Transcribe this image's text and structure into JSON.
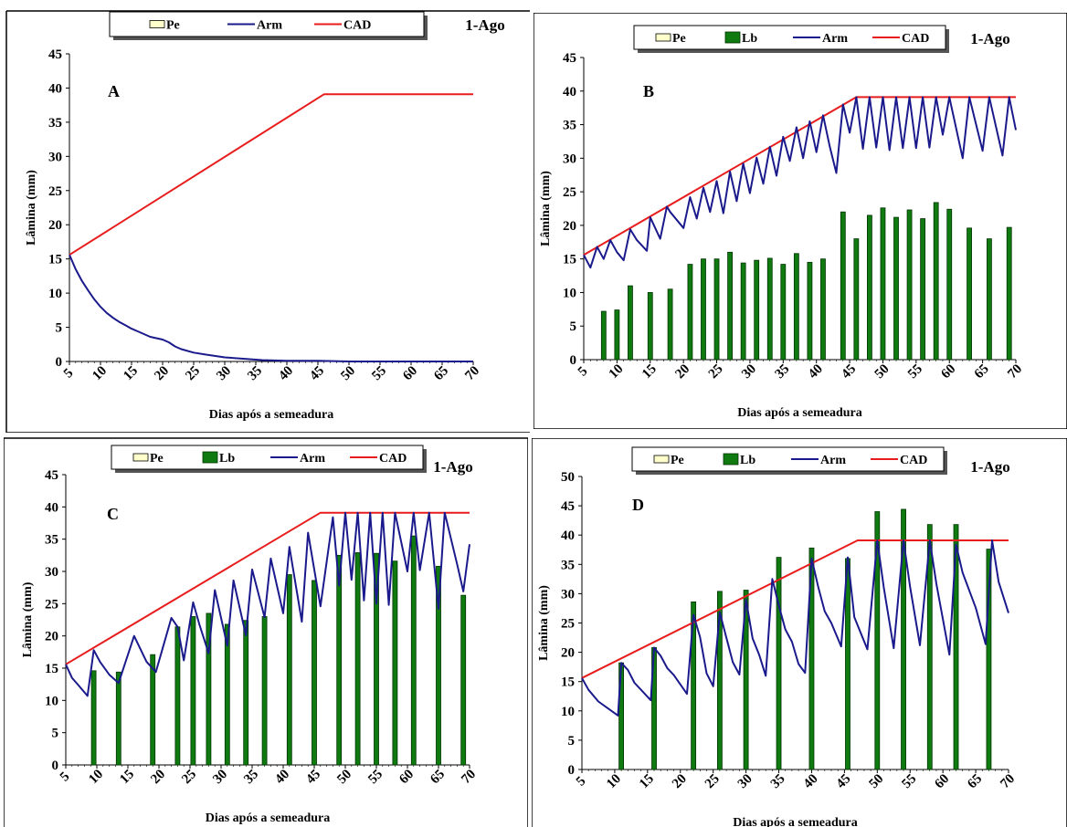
{
  "colors": {
    "arm": "#1a1a8c",
    "cad": "#e81c1c",
    "lb_fill": "#0f7a0f",
    "lb_stroke": "#003300",
    "pe_fill": "#ffffcc"
  },
  "chart_data": [
    {
      "type": "line",
      "panel_label": "A",
      "date_label": "1-Ago",
      "legend": [
        "Pe",
        "Arm",
        "CAD"
      ],
      "xlabel": "Dias após a semeadura",
      "ylabel": "Lâmina (mm)",
      "xlim": [
        5,
        70
      ],
      "ylim": [
        0,
        45
      ],
      "xticks": [
        5,
        10,
        15,
        20,
        25,
        30,
        35,
        40,
        45,
        50,
        55,
        60,
        65,
        70
      ],
      "yticks": [
        0,
        5,
        10,
        15,
        20,
        25,
        30,
        35,
        40,
        45
      ],
      "series": [
        {
          "name": "CAD",
          "x": [
            5,
            46,
            70
          ],
          "y": [
            15.6,
            39.1,
            39.1
          ]
        },
        {
          "name": "Arm",
          "x": [
            5,
            6,
            7,
            8,
            9,
            10,
            11,
            12,
            13,
            14,
            15,
            16,
            17,
            18,
            19,
            20,
            21,
            22,
            23,
            25,
            27,
            30,
            33,
            36,
            40,
            45,
            50,
            60,
            70
          ],
          "y": [
            15.6,
            13.5,
            11.8,
            10.4,
            9.1,
            8.0,
            7.1,
            6.4,
            5.8,
            5.3,
            4.8,
            4.4,
            4.0,
            3.6,
            3.4,
            3.2,
            2.8,
            2.2,
            1.8,
            1.3,
            1.0,
            0.6,
            0.4,
            0.2,
            0.1,
            0.1,
            0.0,
            0.0,
            0.0
          ]
        }
      ]
    },
    {
      "type": "bar",
      "panel_label": "B",
      "date_label": "1-Ago",
      "legend": [
        "Pe",
        "Lb",
        "Arm",
        "CAD"
      ],
      "xlabel": "Dias após a semeadura",
      "ylabel": "Lâmina (mm)",
      "xlim": [
        5,
        70
      ],
      "ylim": [
        0,
        45
      ],
      "xticks": [
        5,
        10,
        15,
        20,
        25,
        30,
        35,
        40,
        45,
        50,
        55,
        60,
        65,
        70
      ],
      "yticks": [
        0,
        5,
        10,
        15,
        20,
        25,
        30,
        35,
        40,
        45
      ],
      "bars": {
        "name": "Lb",
        "x": [
          8,
          10,
          12,
          15,
          18,
          21,
          23,
          25,
          27,
          29,
          31,
          33,
          35,
          37,
          39,
          41,
          44,
          46,
          48,
          50,
          52,
          54,
          56,
          58,
          60,
          63,
          66,
          69
        ],
        "values": [
          7.2,
          7.4,
          11.0,
          10.0,
          10.5,
          14.2,
          15.0,
          15.0,
          16.0,
          14.4,
          14.8,
          15.1,
          14.2,
          15.8,
          14.5,
          15.0,
          22.0,
          18.0,
          21.5,
          22.6,
          21.2,
          22.3,
          21.0,
          23.4,
          22.4,
          19.6,
          18.0,
          19.7
        ]
      },
      "series": [
        {
          "name": "CAD",
          "x": [
            5,
            46,
            70
          ],
          "y": [
            15.6,
            39.1,
            39.1
          ]
        },
        {
          "name": "Arm",
          "x": [
            5,
            6,
            7,
            8,
            9,
            10,
            11,
            12,
            13,
            14.5,
            15,
            16.5,
            17.5,
            18,
            20,
            21,
            22,
            23,
            24,
            25,
            26,
            27,
            28,
            29,
            30,
            31,
            32,
            33,
            34,
            35,
            36,
            37,
            38,
            39,
            40,
            41,
            42,
            43,
            44,
            45,
            46,
            47,
            48,
            49,
            50,
            51,
            52,
            53,
            54,
            55,
            56,
            57,
            58,
            59,
            60,
            62,
            63,
            65,
            66,
            68,
            69,
            70
          ],
          "y": [
            15.6,
            13.7,
            16.8,
            15.0,
            17.8,
            16.0,
            14.8,
            19.4,
            17.8,
            16.2,
            21.2,
            18.0,
            22.8,
            22.0,
            19.6,
            24.2,
            21.0,
            25.6,
            22.0,
            26.6,
            21.8,
            28.0,
            23.6,
            29.2,
            24.8,
            30.1,
            26.2,
            31.7,
            27.4,
            33.2,
            29.6,
            34.6,
            30.0,
            35.5,
            30.9,
            36.4,
            31.8,
            27.8,
            38.0,
            33.8,
            39.1,
            31.4,
            39.1,
            31.6,
            39.1,
            31.2,
            39.1,
            31.5,
            39.1,
            31.5,
            39.1,
            31.6,
            39.1,
            33.5,
            39.1,
            30.0,
            39.1,
            31.1,
            39.1,
            30.4,
            39.1,
            34.2
          ]
        }
      ]
    },
    {
      "type": "bar",
      "panel_label": "C",
      "date_label": "1-Ago",
      "legend": [
        "Pe",
        "Lb",
        "Arm",
        "CAD"
      ],
      "xlabel": "Dias após a semeadura",
      "ylabel": "Lâmina (mm)",
      "xlim": [
        5,
        70
      ],
      "ylim": [
        0,
        45
      ],
      "xticks": [
        5,
        10,
        15,
        20,
        25,
        30,
        35,
        40,
        45,
        50,
        55,
        60,
        65,
        70
      ],
      "yticks": [
        0,
        5,
        10,
        15,
        20,
        25,
        30,
        35,
        40,
        45
      ],
      "bars": {
        "name": "Lb",
        "x": [
          9.5,
          13.5,
          19,
          23,
          25.5,
          28,
          31,
          34,
          37,
          41,
          45,
          49,
          52,
          55,
          58,
          61,
          65,
          69
        ],
        "values": [
          14.6,
          14.4,
          17.1,
          21.4,
          23.0,
          23.5,
          21.8,
          22.4,
          23.0,
          29.5,
          28.6,
          32.5,
          32.9,
          32.8,
          31.6,
          35.5,
          30.8,
          26.3
        ]
      },
      "series": [
        {
          "name": "CAD",
          "x": [
            5,
            46,
            70
          ],
          "y": [
            15.6,
            39.1,
            39.1
          ]
        },
        {
          "name": "Arm",
          "x": [
            5,
            6,
            7,
            8.5,
            9.5,
            10.5,
            12,
            13.5,
            16,
            18,
            19.5,
            22,
            23,
            24,
            25.5,
            26.5,
            28,
            29,
            31,
            32,
            34,
            35,
            37,
            38,
            40,
            41,
            43,
            44,
            46,
            48,
            49,
            50,
            51,
            52,
            53,
            54,
            55,
            56,
            57,
            58,
            60,
            61,
            62,
            63.5,
            65,
            66,
            68,
            69,
            70
          ],
          "y": [
            15.6,
            13.5,
            12.4,
            10.7,
            17.8,
            16.0,
            14.0,
            12.7,
            20.0,
            16.0,
            14.4,
            22.8,
            21.4,
            16.2,
            25.2,
            21.8,
            17.3,
            27.1,
            18.5,
            28.6,
            20.1,
            30.3,
            22.9,
            32.0,
            23.5,
            33.8,
            22.2,
            36.0,
            24.6,
            38.4,
            27.8,
            39.1,
            28.7,
            39.1,
            25.5,
            39.1,
            25.0,
            39.1,
            24.8,
            39.1,
            30.0,
            39.1,
            30.2,
            39.1,
            24.2,
            39.1,
            31.1,
            26.9,
            34.2
          ]
        }
      ]
    },
    {
      "type": "bar",
      "panel_label": "D",
      "date_label": "1-Ago",
      "legend": [
        "Pe",
        "Lb",
        "Arm",
        "CAD"
      ],
      "xlabel": "Dias após a semeadura",
      "ylabel": "Lâmina (mm)",
      "xlim": [
        5,
        70
      ],
      "ylim": [
        0,
        50
      ],
      "xticks": [
        5,
        10,
        15,
        20,
        25,
        30,
        35,
        40,
        45,
        50,
        55,
        60,
        65,
        70
      ],
      "yticks": [
        0,
        5,
        10,
        15,
        20,
        25,
        30,
        35,
        40,
        45,
        50
      ],
      "bars": {
        "name": "Lb",
        "x": [
          11,
          16,
          22,
          26,
          30,
          35,
          40,
          45.5,
          50,
          54,
          58,
          62,
          67
        ],
        "values": [
          18.2,
          20.8,
          28.6,
          30.4,
          30.6,
          36.2,
          37.8,
          36.0,
          44.0,
          44.4,
          41.8,
          41.8,
          37.6
        ]
      },
      "series": [
        {
          "name": "CAD",
          "x": [
            5,
            47,
            70
          ],
          "y": [
            15.6,
            39.1,
            39.1
          ]
        },
        {
          "name": "Arm",
          "x": [
            5,
            6,
            7.5,
            9,
            10.5,
            11,
            12,
            13,
            14,
            15.5,
            16,
            17,
            18,
            19,
            21,
            22,
            23,
            24,
            25,
            26,
            27,
            28,
            29,
            30,
            31,
            32,
            33,
            34,
            35,
            36,
            37,
            38,
            39,
            40,
            41,
            42,
            43,
            44.5,
            45.5,
            46.5,
            48.5,
            50,
            51,
            52.5,
            54,
            55,
            56.5,
            58,
            59,
            61,
            62,
            63,
            65,
            66.5,
            67.5,
            68.5,
            70
          ],
          "y": [
            15.6,
            13.6,
            11.6,
            10.4,
            9.2,
            18.2,
            17.0,
            14.8,
            13.6,
            11.8,
            20.8,
            19.4,
            17.3,
            16.1,
            12.9,
            26.4,
            22.6,
            16.4,
            14.2,
            26.8,
            22.5,
            18.3,
            16.2,
            29.0,
            22.4,
            19.6,
            16.0,
            32.5,
            28.0,
            23.9,
            21.8,
            18.0,
            16.5,
            36.0,
            31.2,
            27.0,
            25.0,
            21.0,
            36.2,
            26.0,
            20.5,
            39.1,
            31.0,
            20.7,
            39.1,
            31.2,
            21.2,
            39.1,
            31.7,
            19.6,
            38.4,
            33.6,
            27.6,
            21.4,
            39.1,
            32.0,
            26.7
          ]
        }
      ]
    }
  ]
}
